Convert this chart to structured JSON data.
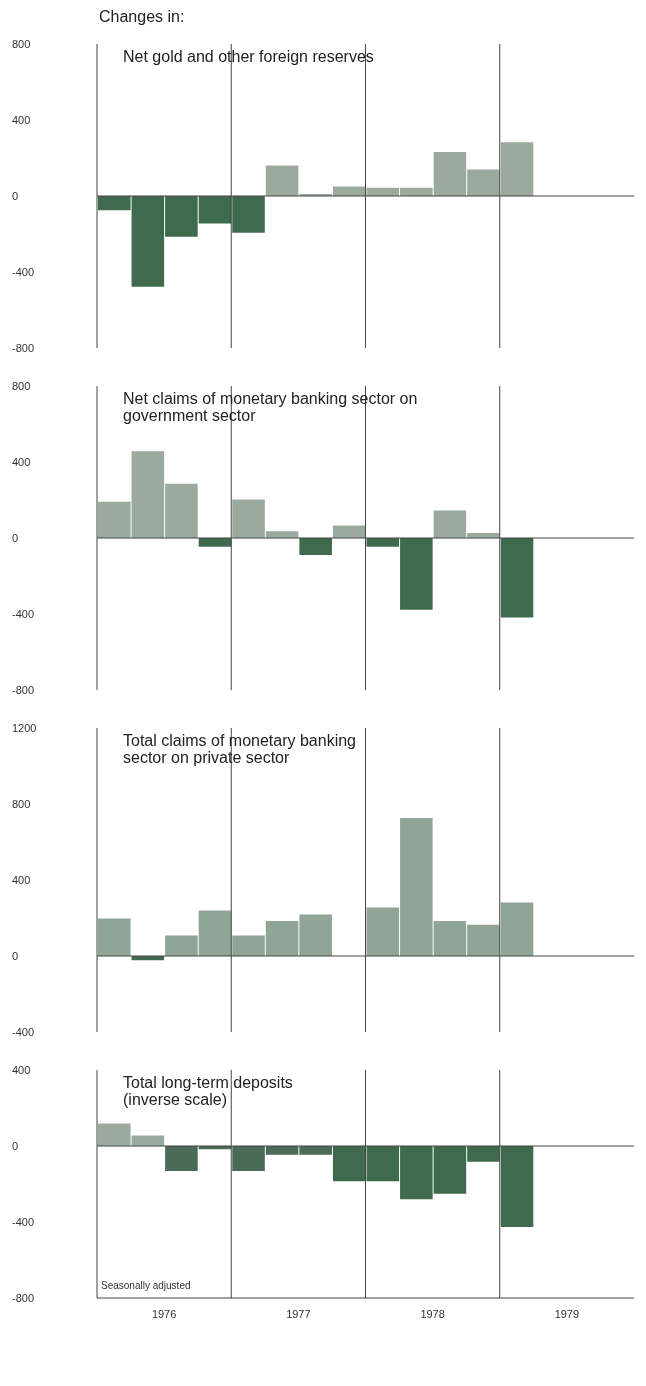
{
  "chart_data": [
    {
      "type": "bar",
      "subtitle": "Changes in:",
      "title": "Net gold and other foreign reserves",
      "x": [
        1976.125,
        1976.375,
        1976.625,
        1976.875,
        1977.125,
        1977.375,
        1977.625,
        1977.875,
        1978.125,
        1978.375,
        1978.625,
        1978.875,
        1979.125
      ],
      "values": [
        -75,
        -477,
        -214,
        -145,
        -193,
        160,
        10,
        50,
        43,
        43,
        231,
        139,
        283
      ],
      "colors": [
        "#3e6b4e",
        "#3e6b4e",
        "#3e6b4e",
        "#3e6b4e",
        "#3e6b4e",
        "#9aaa9c",
        "#9aaa9c",
        "#9aaa9c",
        "#9aaa9c",
        "#9aaa9c",
        "#9aaa9c",
        "#9aaa9c",
        "#9aaa9c"
      ],
      "xlim": [
        1976,
        1980
      ],
      "ylim": [
        -800,
        800
      ],
      "yticks": [
        -800,
        -400,
        0,
        400,
        800
      ],
      "tick_labels": "y",
      "ref_lines": [
        {
          "axis": "y",
          "value": 0
        },
        {
          "axis": "x",
          "value": 1977
        },
        {
          "axis": "x",
          "value": 1978
        },
        {
          "axis": "x",
          "value": 1979
        }
      ]
    },
    {
      "type": "bar",
      "title": "Net claims of monetary banking sector on\ngovernment sector",
      "x": [
        1976.125,
        1976.375,
        1976.625,
        1976.875,
        1977.125,
        1977.375,
        1977.625,
        1977.875,
        1978.125,
        1978.375,
        1978.625,
        1978.875,
        1979.125
      ],
      "values": [
        191,
        457,
        286,
        -46,
        202,
        35,
        -90,
        66,
        -46,
        -378,
        145,
        26,
        -418
      ],
      "colors": [
        "#9aaa9c",
        "#9aaa9c",
        "#9aaa9c",
        "#3e6b4e",
        "#9aaa9c",
        "#9aaa9c",
        "#3e6b4e",
        "#9aaa9c",
        "#3e6b4e",
        "#3e6b4e",
        "#9aaa9c",
        "#9aaa9c",
        "#3e6b4e"
      ],
      "xlim": [
        1976,
        1980
      ],
      "ylim": [
        -800,
        800
      ],
      "yticks": [
        -800,
        -400,
        0,
        400,
        800
      ],
      "tick_labels": "y",
      "ref_lines": [
        {
          "axis": "y",
          "value": 0
        },
        {
          "axis": "x",
          "value": 1977
        },
        {
          "axis": "x",
          "value": 1978
        },
        {
          "axis": "x",
          "value": 1979
        }
      ]
    },
    {
      "type": "bar",
      "title": "Total claims of monetary banking\nsector on private sector",
      "x": [
        1976.125,
        1976.375,
        1976.625,
        1976.875,
        1977.125,
        1977.375,
        1977.625,
        1977.875,
        1978.125,
        1978.375,
        1978.625,
        1978.875,
        1979.125
      ],
      "values": [
        197,
        -22,
        108,
        240,
        108,
        184,
        218,
        null,
        255,
        726,
        184,
        164,
        281
      ],
      "colors": [
        "#8fa595",
        "#3e6b4e",
        "#8fa595",
        "#8fa595",
        "#8fa595",
        "#8fa595",
        "#8fa595",
        "#8fa595",
        "#8fa595",
        "#8fa595",
        "#8fa595",
        "#8fa595",
        "#8fa595"
      ],
      "xlim": [
        1976,
        1980
      ],
      "ylim": [
        -400,
        1200
      ],
      "yticks": [
        -400,
        0,
        400,
        800,
        1200
      ],
      "tick_labels": "y",
      "ref_lines": [
        {
          "axis": "y",
          "value": 0
        },
        {
          "axis": "x",
          "value": 1977
        },
        {
          "axis": "x",
          "value": 1978
        },
        {
          "axis": "x",
          "value": 1979
        }
      ]
    },
    {
      "type": "bar",
      "title": "Total long-term deposits\n(inverse scale)",
      "x": [
        1976.125,
        1976.375,
        1976.625,
        1976.875,
        1977.125,
        1977.375,
        1977.625,
        1977.875,
        1978.125,
        1978.375,
        1978.625,
        1978.875,
        1979.125
      ],
      "values": [
        118,
        55,
        -131,
        -17,
        -131,
        -46,
        -46,
        -186,
        -186,
        -280,
        -251,
        -83,
        -426
      ],
      "colors": [
        "#9aaa9c",
        "#9aaa9c",
        "#4a6b55",
        "#4a6b55",
        "#4a6b55",
        "#4a6b55",
        "#4a6b55",
        "#3e6b4e",
        "#3e6b4e",
        "#3e6b4e",
        "#3e6b4e",
        "#3e6b4e",
        "#3e6b4e"
      ],
      "xlim": [
        1976,
        1980
      ],
      "ylim": [
        -800,
        400
      ],
      "yticks": [
        -800,
        -400,
        0,
        400
      ],
      "xticks": [
        {
          "value": 1976.5,
          "label": "1976"
        },
        {
          "value": 1977.5,
          "label": "1977"
        },
        {
          "value": 1978.5,
          "label": "1978"
        },
        {
          "value": 1979.5,
          "label": "1979"
        }
      ],
      "annotations": [
        "Seasonally adjusted"
      ],
      "ref_lines": [
        {
          "axis": "y",
          "value": 0
        },
        {
          "axis": "x",
          "value": 1977
        },
        {
          "axis": "x",
          "value": 1978
        },
        {
          "axis": "x",
          "value": 1979
        }
      ]
    }
  ]
}
